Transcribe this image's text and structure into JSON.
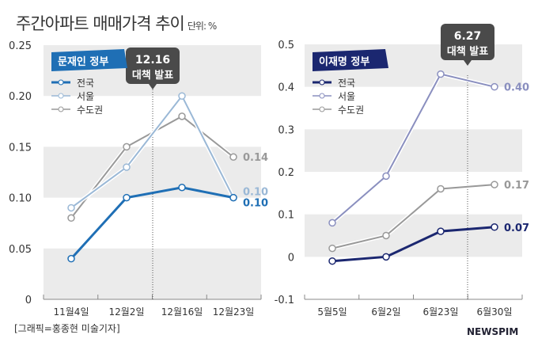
{
  "title": "주간아파트 매매가격 추이",
  "unit": "단위: %",
  "credit": "[그래픽=홍종현 미술기자]",
  "logo": "NEWSPIM",
  "chart_data": [
    {
      "type": "line",
      "badge": "문재인 정부",
      "badge_color": "#1f6fb5",
      "annotation": {
        "line1": "12.16",
        "line2": "대책 발표",
        "position_between": [
          "12월2일",
          "12월16일"
        ]
      },
      "categories": [
        "11월4일",
        "12월2일",
        "12월16일",
        "12월23일"
      ],
      "ylim": [
        0,
        0.25
      ],
      "yticks": [
        "0",
        "0.05",
        "0.10",
        "0.15",
        "0.20",
        "0.25"
      ],
      "series": [
        {
          "name": "전국",
          "values": [
            0.04,
            0.1,
            0.11,
            0.1
          ],
          "color": "#1f6fb5",
          "end_label": "0.10"
        },
        {
          "name": "서울",
          "values": [
            0.09,
            0.13,
            0.2,
            0.1
          ],
          "color": "#9ab8d6",
          "end_label": "0.10"
        },
        {
          "name": "수도권",
          "values": [
            0.08,
            0.15,
            0.18,
            0.14
          ],
          "color": "#999999",
          "end_label": "0.14"
        }
      ]
    },
    {
      "type": "line",
      "badge": "이재명 정부",
      "badge_color": "#1b2770",
      "annotation": {
        "line1": "6.27",
        "line2": "대책 발표",
        "position_between": [
          "6월23일",
          "6월30일"
        ]
      },
      "categories": [
        "5월5일",
        "6월2일",
        "6월23일",
        "6월30일"
      ],
      "ylim": [
        -0.1,
        0.5
      ],
      "yticks": [
        "-0.1",
        "0",
        "0.1",
        "0.2",
        "0.3",
        "0.4",
        "0.5"
      ],
      "series": [
        {
          "name": "전국",
          "values": [
            -0.01,
            0,
            0.06,
            0.07
          ],
          "color": "#1b2770",
          "end_label": "0.07"
        },
        {
          "name": "서울",
          "values": [
            0.08,
            0.19,
            0.43,
            0.4
          ],
          "color": "#8a8fbf",
          "end_label": "0.40"
        },
        {
          "name": "수도권",
          "values": [
            0.02,
            0.05,
            0.16,
            0.17
          ],
          "color": "#999999",
          "end_label": "0.17"
        }
      ]
    }
  ]
}
